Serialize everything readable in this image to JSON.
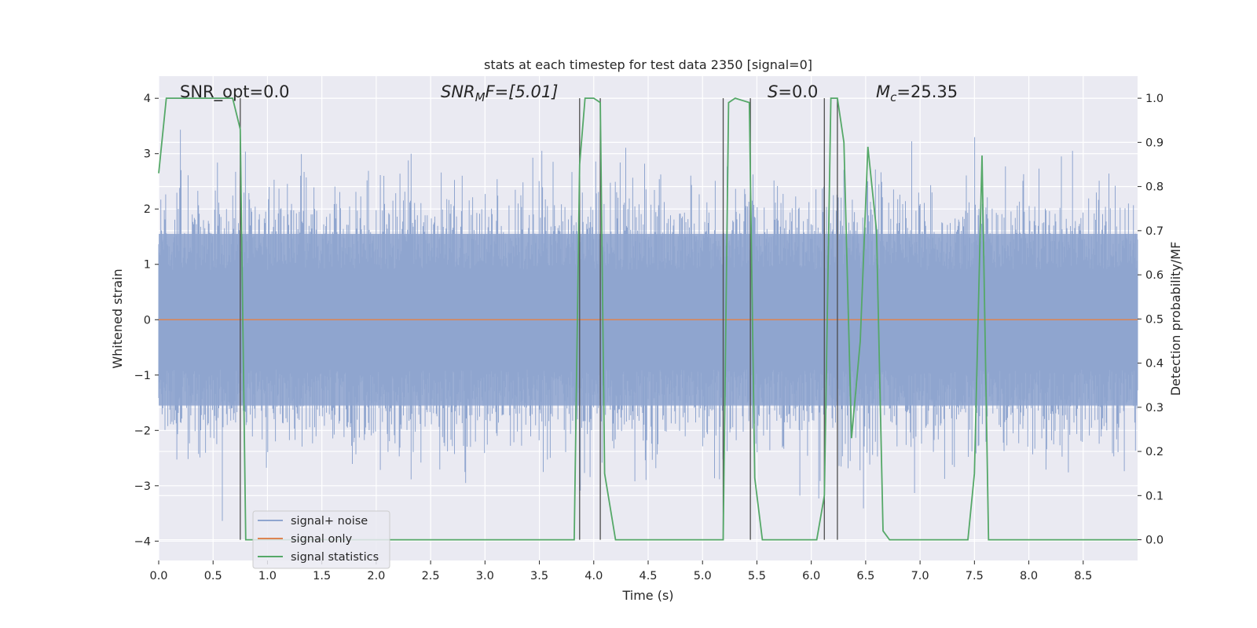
{
  "chart_data": {
    "type": "line",
    "title": "stats at each timestep for test data 2350 [signal=0]",
    "xlabel": "Time (s)",
    "ylabel": "Whitened strain",
    "y2label": "Detection probability/MF",
    "xlim": [
      0,
      9.0
    ],
    "ylim": [
      -4.35,
      4.4
    ],
    "y2lim": [
      -0.047,
      1.05
    ],
    "x_ticks": [
      "0.0",
      "0.5",
      "1.0",
      "1.5",
      "2.0",
      "2.5",
      "3.0",
      "3.5",
      "4.0",
      "4.5",
      "5.0",
      "5.5",
      "6.0",
      "6.5",
      "7.0",
      "7.5",
      "8.0",
      "8.5"
    ],
    "y_ticks": [
      "4",
      "3",
      "2",
      "1",
      "0",
      "−1",
      "−2",
      "−3",
      "−4"
    ],
    "y2_ticks": [
      "1.0",
      "0.9",
      "0.8",
      "0.7",
      "0.6",
      "0.5",
      "0.4",
      "0.3",
      "0.2",
      "0.1",
      "0.0"
    ],
    "grid": true,
    "legend_position": "lower-left",
    "colors": {
      "background": "#eaeaf2",
      "grid": "#ffffff",
      "noise": "#8fa5cf",
      "signal_only": "#dd8452",
      "statistics": "#55a868",
      "vlines": "#4d4d4d"
    },
    "annotations": {
      "snr_opt": "SNR_opt=0.0",
      "snr_mf_base": "SNR",
      "snr_mf_sub": "M",
      "snr_mf_rest": "F=[5.01]",
      "s_italic": "S",
      "s_rest": "=0.0",
      "mc_base": "M",
      "mc_sub": "c",
      "mc_rest": "=25.35"
    },
    "series": [
      {
        "name": "signal+ noise",
        "style": "noise-band",
        "x_range": [
          0,
          9.0
        ],
        "core_amplitude": 1.55,
        "peak_amplitude": 3.95,
        "description_values": "whitened strain ~ Gaussian noise, |y| mostly < 2.5"
      },
      {
        "name": "signal only",
        "x": [
          0,
          9.0
        ],
        "y": [
          0,
          0
        ]
      },
      {
        "name": "signal statistics",
        "x": [
          0.0,
          0.07,
          0.12,
          0.68,
          0.75,
          0.8,
          0.85,
          3.82,
          3.87,
          3.92,
          4.0,
          4.06,
          4.1,
          4.2,
          5.19,
          5.24,
          5.3,
          5.43,
          5.48,
          5.55,
          6.05,
          6.12,
          6.18,
          6.24,
          6.3,
          6.37,
          6.45,
          6.52,
          6.6,
          6.66,
          6.72,
          7.44,
          7.5,
          7.57,
          7.63,
          9.0
        ],
        "y": [
          0.83,
          1.0,
          1.0,
          1.0,
          0.93,
          0.0,
          0.0,
          0.0,
          0.85,
          1.0,
          1.0,
          0.99,
          0.15,
          0.0,
          0.0,
          0.99,
          1.0,
          0.99,
          0.14,
          0.0,
          0.0,
          0.1,
          1.0,
          1.0,
          0.9,
          0.23,
          0.45,
          0.89,
          0.7,
          0.02,
          0.0,
          0.0,
          0.15,
          0.87,
          0.0,
          0.0
        ]
      }
    ],
    "vertical_lines_x": [
      0.75,
      3.87,
      4.06,
      5.19,
      5.44,
      6.12,
      6.24
    ]
  }
}
